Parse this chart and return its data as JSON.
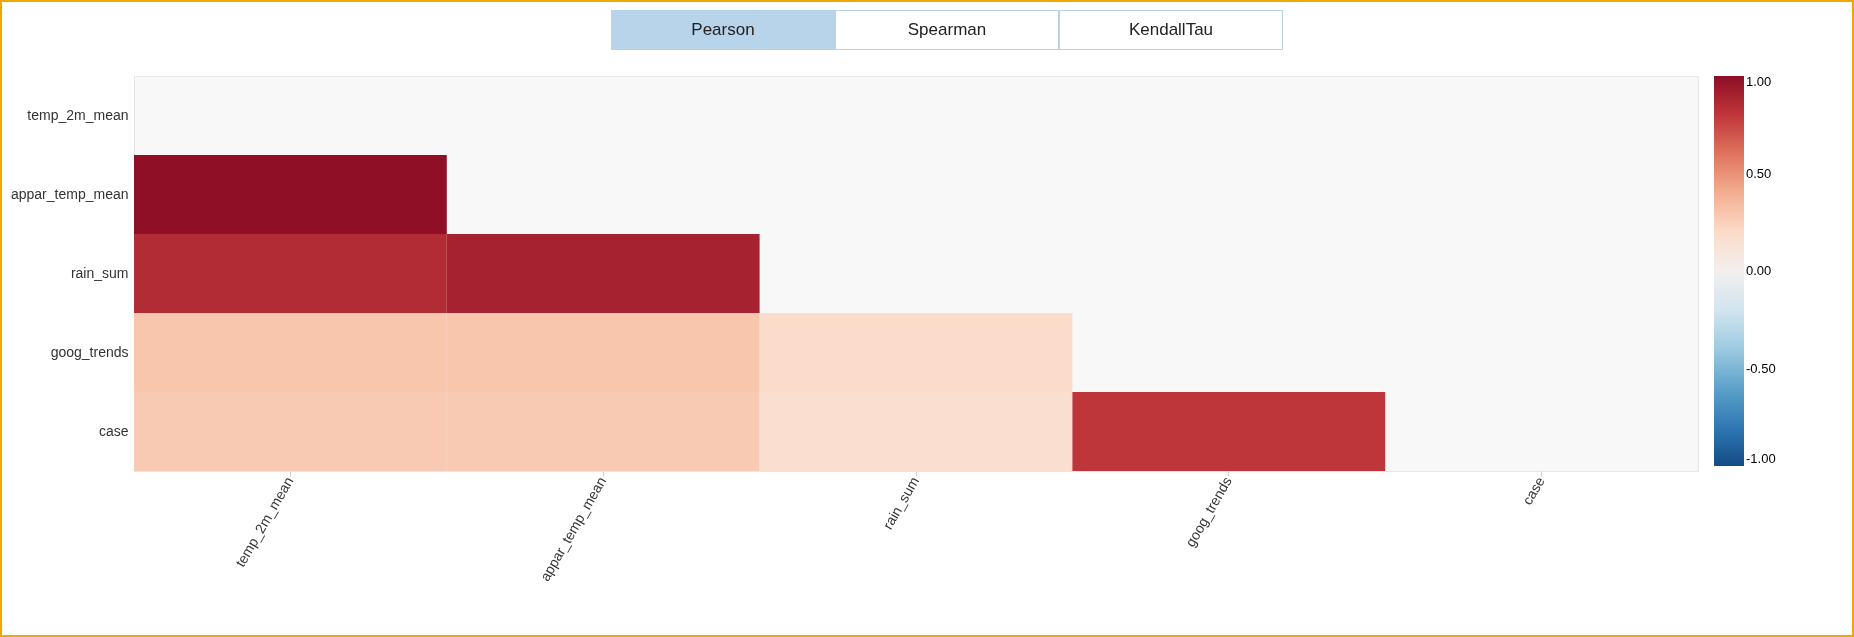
{
  "chart_data": {
    "type": "heatmap",
    "annotations": [
      "Pearson",
      "Spearman",
      "KendallTau"
    ],
    "categories": [
      "temp_2m_mean",
      "appar_temp_mean",
      "rain_sum",
      "goog_trends",
      "case"
    ],
    "y_categories": [
      "temp_2m_mean",
      "appar_temp_mean",
      "rain_sum",
      "goog_trends",
      "case"
    ],
    "cells": [
      [
        null,
        null,
        null,
        null,
        null
      ],
      [
        0.99,
        null,
        null,
        null,
        null
      ],
      [
        0.85,
        0.9,
        null,
        null,
        null
      ],
      [
        0.3,
        0.3,
        0.2,
        null,
        null
      ],
      [
        0.28,
        0.28,
        0.17,
        0.8,
        null
      ]
    ],
    "clim": [
      -1,
      1
    ],
    "cticks": [
      {
        "value": 1,
        "label": "1.00"
      },
      {
        "value": 0.5,
        "label": "0.50"
      },
      {
        "value": 0,
        "label": "0.00"
      },
      {
        "value": -0.5,
        "label": "-0.50"
      },
      {
        "value": -1,
        "label": "-1.00"
      }
    ],
    "grid": false
  }
}
